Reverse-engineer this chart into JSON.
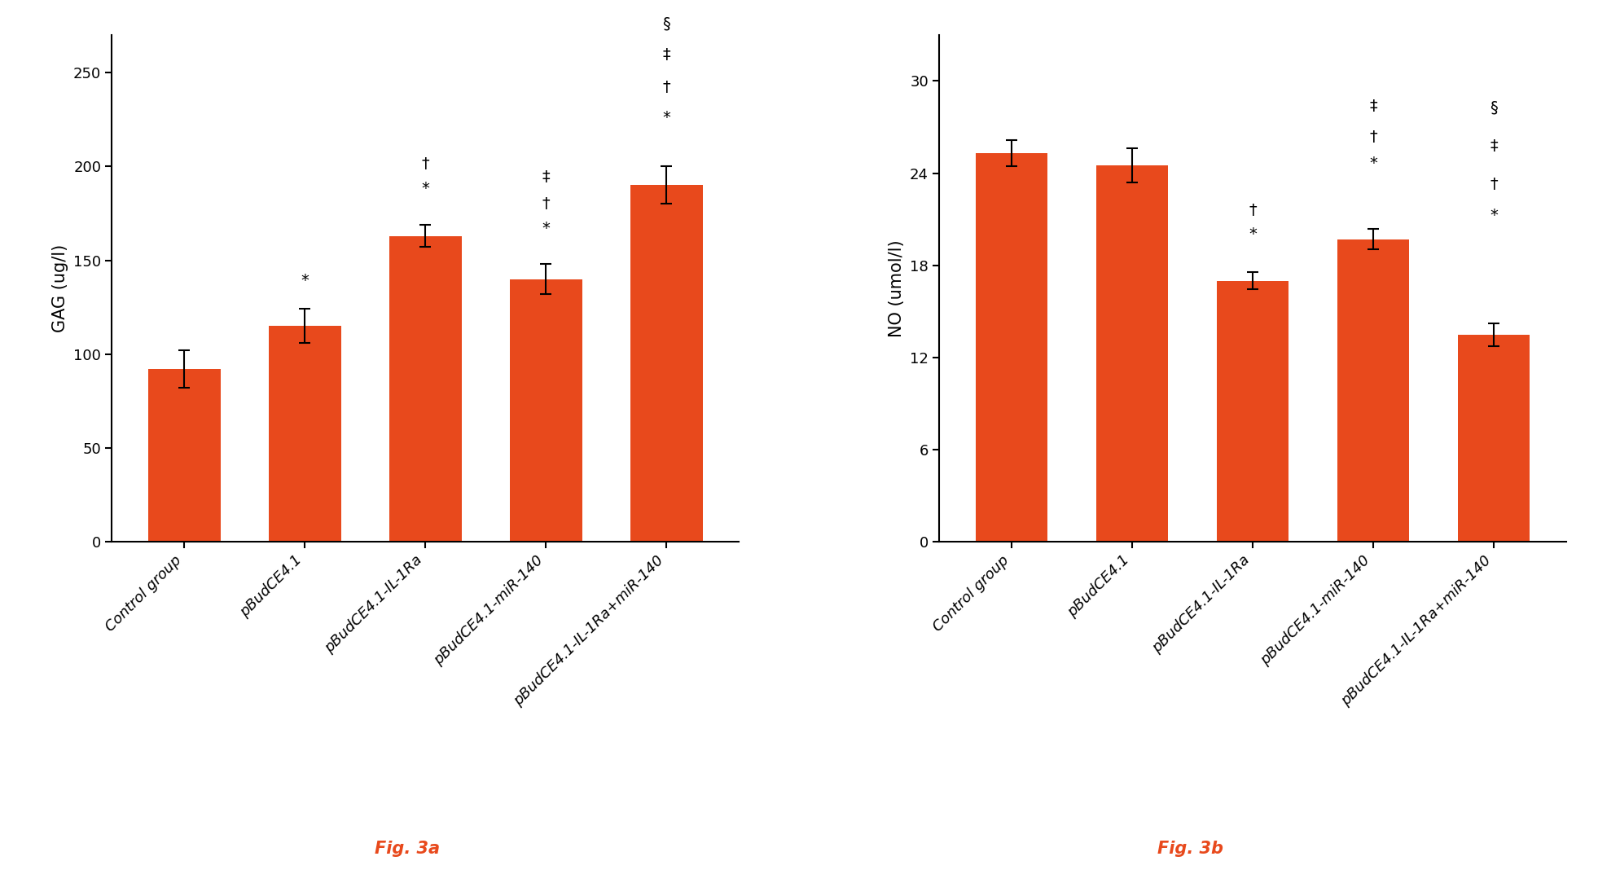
{
  "categories": [
    "Control group",
    "pBudCE4.1",
    "pBudCE4.1-IL-1Ra",
    "pBudCE4.1-miR-140",
    "pBudCE4.1-IL-1Ra+miR-140"
  ],
  "gag_values": [
    92,
    115,
    163,
    140,
    190
  ],
  "gag_errors": [
    10,
    9,
    6,
    8,
    10
  ],
  "no_values": [
    25.3,
    24.5,
    17.0,
    19.7,
    13.5
  ],
  "no_errors": [
    0.85,
    1.1,
    0.55,
    0.65,
    0.75
  ],
  "bar_color": "#E8491C",
  "gag_ylabel": "GAG (ug/l)",
  "no_ylabel": "NO (umol/l)",
  "gag_ylim": [
    0,
    270
  ],
  "no_ylim": [
    0,
    33
  ],
  "gag_yticks": [
    0,
    50,
    100,
    150,
    200,
    250
  ],
  "no_yticks": [
    0,
    6,
    12,
    18,
    24,
    30
  ],
  "fig3a_label": "Fig. 3a",
  "fig3b_label": "Fig. 3b",
  "label_color": "#E8491C",
  "gag_annotations": [
    {
      "bar_idx": 1,
      "texts": [
        "*"
      ],
      "offsets": [
        11
      ]
    },
    {
      "bar_idx": 2,
      "texts": [
        "†",
        "*"
      ],
      "offsets": [
        28,
        15
      ]
    },
    {
      "bar_idx": 3,
      "texts": [
        "‡",
        "†",
        "*"
      ],
      "offsets": [
        42,
        28,
        15
      ]
    },
    {
      "bar_idx": 4,
      "texts": [
        "§",
        "‡",
        "†",
        "*"
      ],
      "offsets": [
        72,
        55,
        38,
        22
      ]
    }
  ],
  "no_annotations": [
    {
      "bar_idx": 2,
      "texts": [
        "†",
        "*"
      ],
      "offsets": [
        3.5,
        2.0
      ]
    },
    {
      "bar_idx": 3,
      "texts": [
        "‡",
        "†",
        "*"
      ],
      "offsets": [
        7.5,
        5.5,
        3.8
      ]
    },
    {
      "bar_idx": 4,
      "texts": [
        "§",
        "‡",
        "†",
        "*"
      ],
      "offsets": [
        13.5,
        11.0,
        8.5,
        6.5
      ]
    }
  ],
  "annotation_fontsize": 14,
  "tick_fontsize": 13,
  "ylabel_fontsize": 15,
  "label_fontsize": 15,
  "xtick_fontsize": 13
}
